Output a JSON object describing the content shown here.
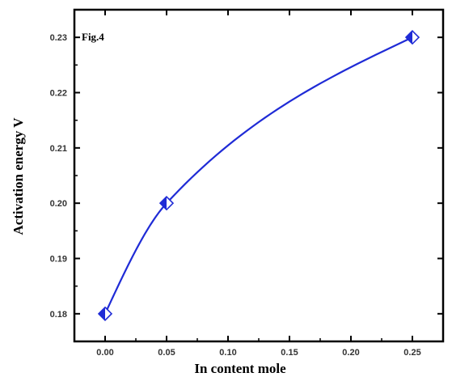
{
  "chart_data": {
    "type": "scatter",
    "annotation": "Fig.4",
    "xlabel": "In content mole",
    "ylabel": "Activation energy V",
    "xlim": [
      -0.025,
      0.275
    ],
    "ylim": [
      0.175,
      0.235
    ],
    "x_ticks": [
      "0.00",
      "0.05",
      "0.10",
      "0.15",
      "0.20",
      "0.25"
    ],
    "y_ticks": [
      "0.18",
      "0.19",
      "0.20",
      "0.21",
      "0.22",
      "0.23"
    ],
    "grid": false,
    "series": [
      {
        "x": [
          0.0,
          0.05,
          0.25
        ],
        "y": [
          0.18,
          0.2,
          0.23
        ],
        "marker": "half-filled-diamond",
        "line": "smooth-curve"
      }
    ],
    "colors": {
      "series": "#1f2bd6",
      "axes": "#000000"
    }
  }
}
